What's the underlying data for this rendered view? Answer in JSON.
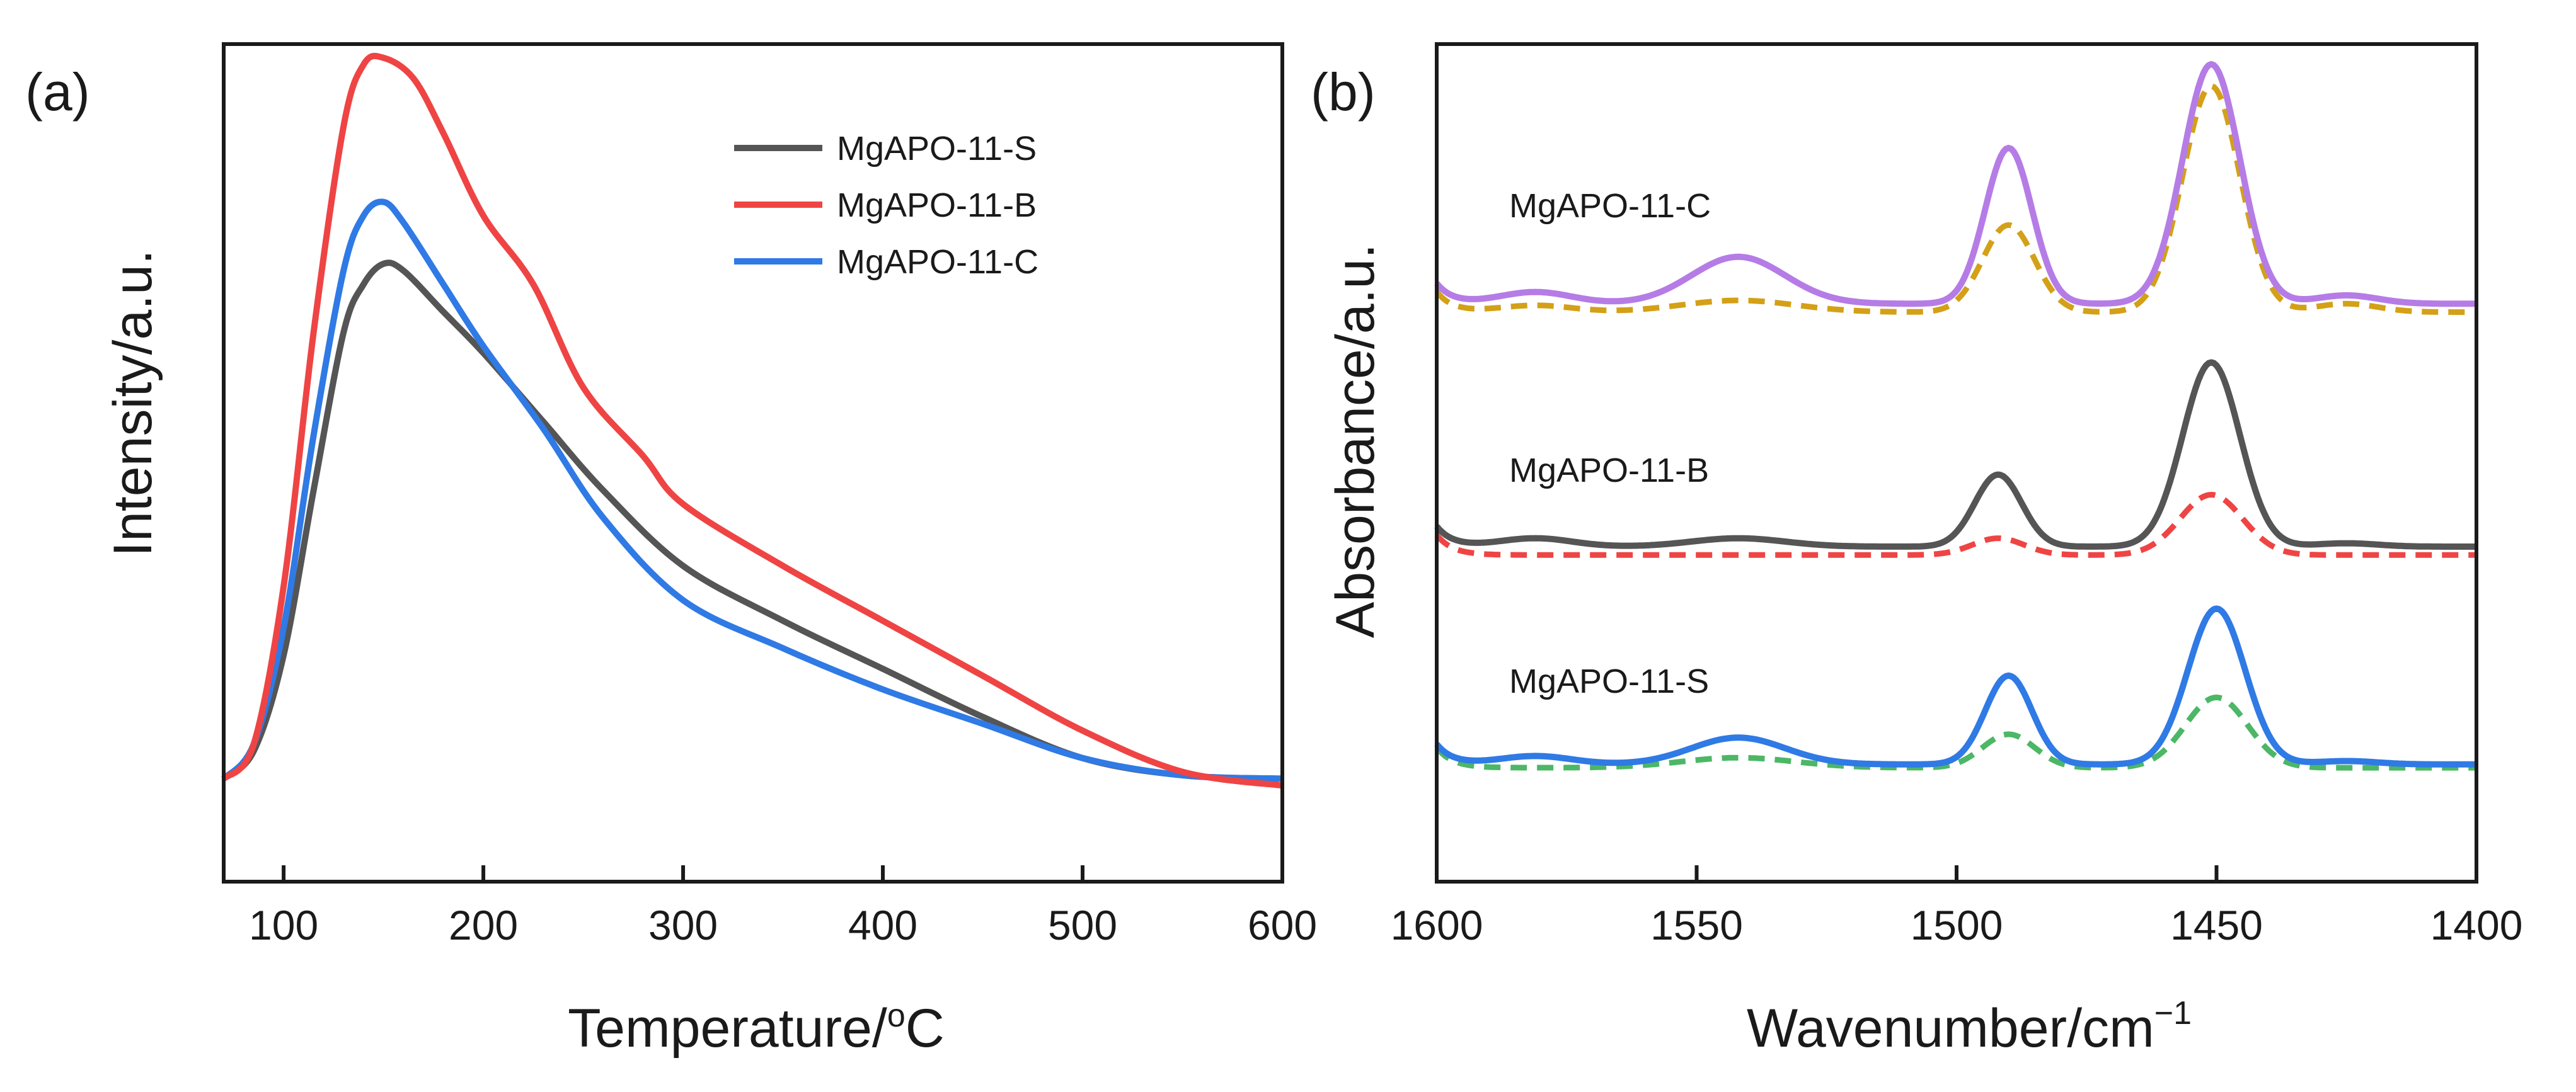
{
  "chart_data": [
    {
      "panel_label": "(a)",
      "type": "line",
      "xlabel": "Temperature/",
      "xlabel_sup": "o",
      "xlabel_unit": "C",
      "ylabel": "Intensity/a.u.",
      "xlim": [
        70,
        600
      ],
      "ylim": [
        -0.15,
        1.07
      ],
      "xticks": [
        100,
        200,
        300,
        400,
        500,
        600
      ],
      "yticks_shown": false,
      "legend_position": "top-right",
      "colors": {
        "MgAPO-11-S": "#555555",
        "MgAPO-11-B": "#ef4444",
        "MgAPO-11-C": "#2f7ae5"
      },
      "series": [
        {
          "name": "MgAPO-11-S",
          "x": [
            70,
            85,
            100,
            115,
            130,
            140,
            150,
            160,
            180,
            200,
            230,
            260,
            300,
            350,
            400,
            450,
            500,
            550,
            600
          ],
          "y": [
            0.0,
            0.04,
            0.18,
            0.42,
            0.65,
            0.72,
            0.75,
            0.74,
            0.68,
            0.62,
            0.52,
            0.42,
            0.31,
            0.23,
            0.16,
            0.09,
            0.03,
            0.005,
            0.0
          ]
        },
        {
          "name": "MgAPO-11-B",
          "x": [
            70,
            85,
            100,
            115,
            130,
            140,
            150,
            165,
            180,
            200,
            225,
            250,
            280,
            300,
            350,
            400,
            450,
            500,
            550,
            600
          ],
          "y": [
            0.0,
            0.05,
            0.28,
            0.65,
            0.95,
            1.04,
            1.05,
            1.02,
            0.94,
            0.82,
            0.72,
            0.57,
            0.47,
            0.4,
            0.31,
            0.23,
            0.15,
            0.07,
            0.01,
            -0.01
          ]
        },
        {
          "name": "MgAPO-11-C",
          "x": [
            70,
            85,
            100,
            115,
            130,
            140,
            150,
            160,
            180,
            200,
            230,
            260,
            300,
            350,
            400,
            450,
            500,
            550,
            600
          ],
          "y": [
            0.0,
            0.05,
            0.22,
            0.5,
            0.74,
            0.82,
            0.84,
            0.81,
            0.72,
            0.63,
            0.51,
            0.38,
            0.26,
            0.19,
            0.13,
            0.08,
            0.03,
            0.005,
            0.0
          ]
        }
      ]
    },
    {
      "panel_label": "(b)",
      "type": "line",
      "xlabel": "Wavenumber/cm",
      "xlabel_sup": "−1",
      "ylabel": "Absorbance/a.u.",
      "xlim": [
        1600,
        1400
      ],
      "ylim": [
        -0.5,
        4.5
      ],
      "xticks": [
        1600,
        1550,
        1500,
        1450,
        1400
      ],
      "yticks_shown": false,
      "sample_labels": [
        "MgAPO-11-C",
        "MgAPO-11-B",
        "MgAPO-11-S"
      ],
      "series": [
        {
          "name": "MgAPO-11-C solid",
          "color": "#b57ce6",
          "dashed": false,
          "baseline": 2.95,
          "peaks": [
            [
              1542,
              0.28,
              9
            ],
            [
              1581,
              0.07,
              7
            ],
            [
              1490,
              0.93,
              4.5
            ],
            [
              1451,
              1.43,
              5.5
            ],
            [
              1425,
              0.05,
              6
            ]
          ]
        },
        {
          "name": "MgAPO-11-C dashed",
          "color": "#d4a017",
          "dashed": true,
          "baseline": 2.9,
          "peaks": [
            [
              1542,
              0.07,
              11
            ],
            [
              1581,
              0.04,
              7
            ],
            [
              1490,
              0.52,
              5
            ],
            [
              1451,
              1.35,
              5.5
            ],
            [
              1425,
              0.05,
              6
            ]
          ]
        },
        {
          "name": "MgAPO-11-B solid",
          "color": "#555555",
          "dashed": false,
          "baseline": 1.5,
          "peaks": [
            [
              1581,
              0.05,
              7
            ],
            [
              1542,
              0.05,
              9
            ],
            [
              1492,
              0.43,
              4.5
            ],
            [
              1451,
              1.1,
              5.5
            ],
            [
              1425,
              0.02,
              6
            ]
          ]
        },
        {
          "name": "MgAPO-11-B dashed",
          "color": "#ef4444",
          "dashed": true,
          "baseline": 1.45,
          "peaks": [
            [
              1492,
              0.1,
              5
            ],
            [
              1451,
              0.36,
              6
            ]
          ]
        },
        {
          "name": "MgAPO-11-S solid",
          "color": "#2f7ae5",
          "dashed": false,
          "baseline": 0.2,
          "peaks": [
            [
              1581,
              0.05,
              7
            ],
            [
              1542,
              0.16,
              9
            ],
            [
              1490,
              0.53,
              4.5
            ],
            [
              1450,
              0.93,
              5.5
            ],
            [
              1425,
              0.02,
              6
            ]
          ]
        },
        {
          "name": "MgAPO-11-S dashed",
          "color": "#4cb766",
          "dashed": true,
          "baseline": 0.18,
          "peaks": [
            [
              1542,
              0.06,
              11
            ],
            [
              1490,
              0.2,
              5
            ],
            [
              1450,
              0.42,
              6
            ]
          ]
        }
      ]
    }
  ]
}
